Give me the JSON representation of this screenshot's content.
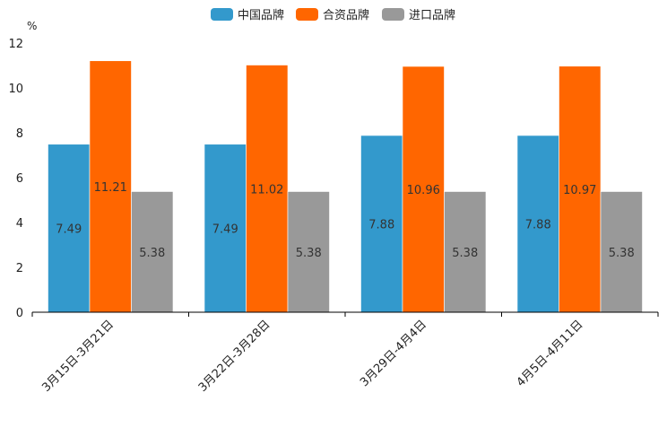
{
  "chart_data": {
    "type": "bar",
    "title": "",
    "unit": "%",
    "xlabel": "",
    "ylabel": "%",
    "ylim": [
      0,
      12
    ],
    "yticks": [
      0,
      2,
      4,
      6,
      8,
      10,
      12
    ],
    "grid": false,
    "legend_position": "top-center",
    "categories": [
      "3月15日-3月21日",
      "3月22日-3月28日",
      "3月29日-4月4日",
      "4月5日-4月11日"
    ],
    "series": [
      {
        "name": "中国品牌",
        "color": "#3399cc",
        "values": [
          7.49,
          7.49,
          7.88,
          7.88
        ],
        "labels": [
          "7.49",
          "7.49",
          "7.88",
          "7.88"
        ]
      },
      {
        "name": "合资品牌",
        "color": "#ff6600",
        "values": [
          11.21,
          11.02,
          10.96,
          10.97
        ],
        "labels": [
          "11.21",
          "11.02",
          "10.96",
          "10.97"
        ]
      },
      {
        "name": "进口品牌",
        "color": "#999999",
        "values": [
          5.38,
          5.38,
          5.38,
          5.38
        ],
        "labels": [
          "5.38",
          "5.38",
          "5.38",
          "5.38"
        ]
      }
    ]
  }
}
